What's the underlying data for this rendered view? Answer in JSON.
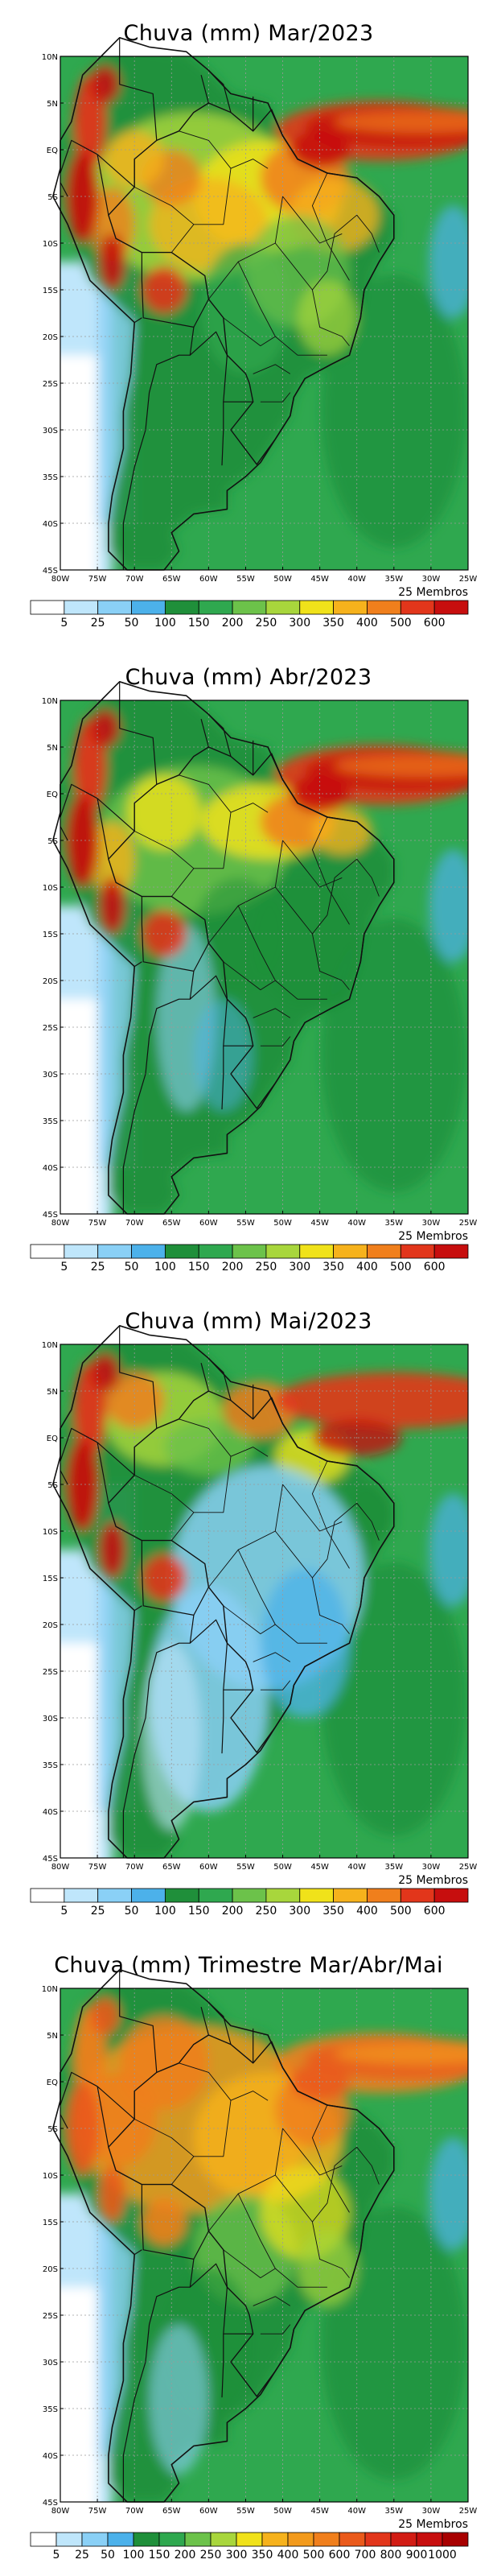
{
  "panels": [
    {
      "title": "Chuva (mm) Mar/2023",
      "members": "25 Membros",
      "colorbar_labels": [
        "5",
        "25",
        "50",
        "100",
        "150",
        "200",
        "250",
        "300",
        "350",
        "400",
        "500",
        "600"
      ],
      "colorbar_colors": [
        "#ffffff",
        "#bfe6fb",
        "#8ad0f6",
        "#4cb1ea",
        "#1f8f3a",
        "#2fa84f",
        "#6cc24a",
        "#a8d63c",
        "#f0e21a",
        "#f6b21c",
        "#f07f1c",
        "#e2361b",
        "#c70e0e"
      ]
    },
    {
      "title": "Chuva (mm) Abr/2023",
      "members": "25 Membros",
      "colorbar_labels": [
        "5",
        "25",
        "50",
        "100",
        "150",
        "200",
        "250",
        "300",
        "350",
        "400",
        "500",
        "600"
      ],
      "colorbar_colors": [
        "#ffffff",
        "#bfe6fb",
        "#8ad0f6",
        "#4cb1ea",
        "#1f8f3a",
        "#2fa84f",
        "#6cc24a",
        "#a8d63c",
        "#f0e21a",
        "#f6b21c",
        "#f07f1c",
        "#e2361b",
        "#c70e0e"
      ]
    },
    {
      "title": "Chuva (mm) Mai/2023",
      "members": "25 Membros",
      "colorbar_labels": [
        "5",
        "25",
        "50",
        "100",
        "150",
        "200",
        "250",
        "300",
        "350",
        "400",
        "500",
        "600"
      ],
      "colorbar_colors": [
        "#ffffff",
        "#bfe6fb",
        "#8ad0f6",
        "#4cb1ea",
        "#1f8f3a",
        "#2fa84f",
        "#6cc24a",
        "#a8d63c",
        "#f0e21a",
        "#f6b21c",
        "#f07f1c",
        "#e2361b",
        "#c70e0e"
      ]
    },
    {
      "title": "Chuva (mm) Trimestre Mar/Abr/Mai",
      "members": "25 Membros",
      "colorbar_labels": [
        "5",
        "25",
        "50",
        "100",
        "150",
        "200",
        "250",
        "300",
        "350",
        "400",
        "500",
        "600",
        "700",
        "800",
        "900",
        "1000"
      ],
      "colorbar_colors": [
        "#ffffff",
        "#bfe6fb",
        "#8ad0f6",
        "#4cb1ea",
        "#1f8f3a",
        "#2fa84f",
        "#6cc24a",
        "#a8d63c",
        "#f0e21a",
        "#f6b21c",
        "#f29a1c",
        "#f07f1c",
        "#ea5a1b",
        "#e2361b",
        "#d21c14",
        "#c70e0e",
        "#a80000"
      ]
    }
  ],
  "lat_labels": [
    "10N",
    "5N",
    "EQ",
    "5S",
    "10S",
    "15S",
    "20S",
    "25S",
    "30S",
    "35S",
    "40S",
    "45S"
  ],
  "lon_labels": [
    "80W",
    "75W",
    "70W",
    "65W",
    "60W",
    "55W",
    "50W",
    "45W",
    "40W",
    "35W",
    "30W",
    "25W"
  ]
}
